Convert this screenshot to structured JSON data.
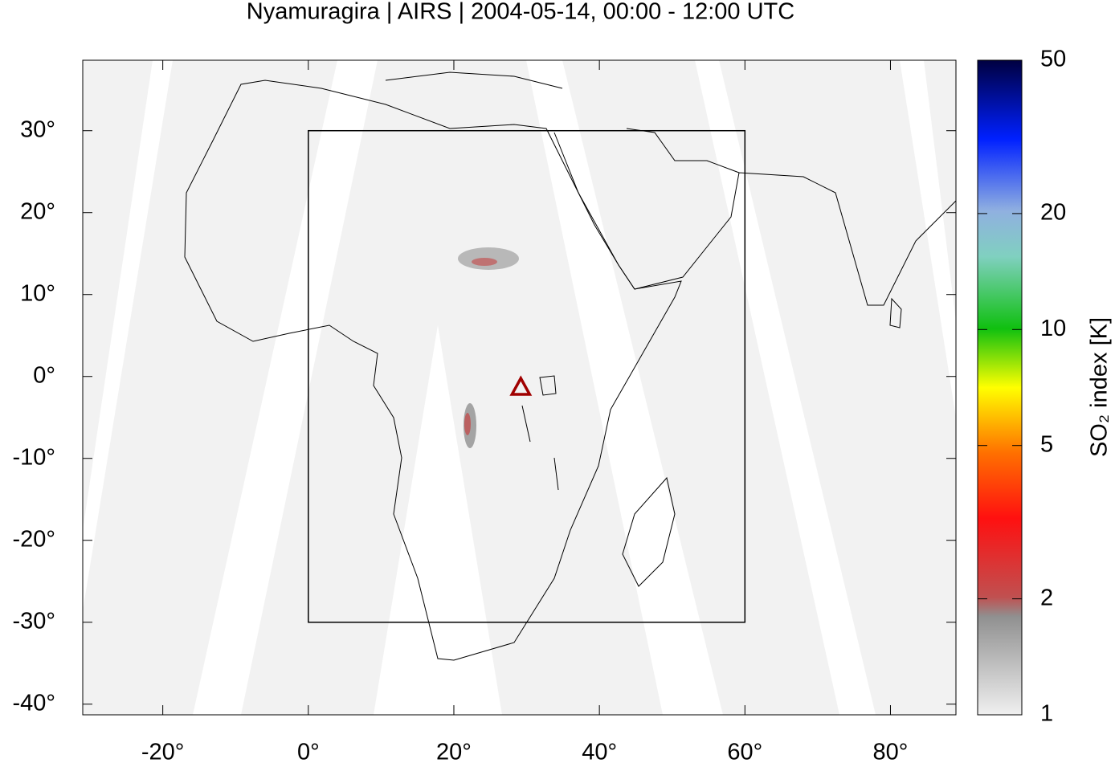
{
  "chart_data": {
    "type": "map",
    "title": "Nyamuragira | AIRS | 2004-05-14, 00:00 - 12:00 UTC",
    "xlim": [
      -31,
      89
    ],
    "ylim": [
      -41.3,
      38.6
    ],
    "xticks": [
      {
        "value": -20,
        "label": "-20°"
      },
      {
        "value": 0,
        "label": "0°"
      },
      {
        "value": 20,
        "label": "20°"
      },
      {
        "value": 40,
        "label": "40°"
      },
      {
        "value": 60,
        "label": "60°"
      },
      {
        "value": 80,
        "label": "80°"
      }
    ],
    "yticks": [
      {
        "value": -40,
        "label": "-40°"
      },
      {
        "value": -30,
        "label": "-30°"
      },
      {
        "value": -20,
        "label": "-20°"
      },
      {
        "value": -10,
        "label": "-10°"
      },
      {
        "value": 0,
        "label": "0°"
      },
      {
        "value": 10,
        "label": "10°"
      },
      {
        "value": 20,
        "label": "20°"
      },
      {
        "value": 30,
        "label": "30°"
      }
    ],
    "region": {
      "lon": [
        0,
        60
      ],
      "lat": [
        -30,
        30
      ]
    },
    "volcano": {
      "lon": 29.2,
      "lat": -1.4,
      "color": "#a00000"
    },
    "colorbar": {
      "label": "SO₂ index [K]",
      "log_scale": true,
      "lim": [
        1,
        50
      ],
      "ticks": [
        1,
        2,
        5,
        10,
        20,
        50
      ]
    }
  }
}
